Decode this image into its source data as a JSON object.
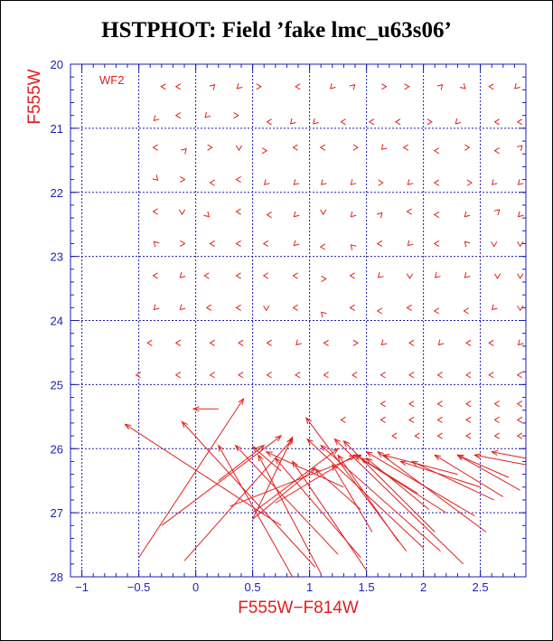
{
  "chart_data": {
    "type": "scatter",
    "title": "HSTPHOT: Field ’fake lmc_u63s06’",
    "xlabel": "F555W−F814W",
    "ylabel": "F555W",
    "panel_label": "WF2",
    "xlim": [
      -1.1,
      2.9
    ],
    "ylim": [
      28,
      20
    ],
    "x_ticks": [
      "−1",
      "−0.5",
      "0",
      "0.5",
      "1",
      "1.5",
      "2",
      "2.5"
    ],
    "x_tick_values": [
      -1,
      -0.5,
      0,
      0.5,
      1,
      1.5,
      2,
      2.5
    ],
    "y_ticks": [
      "20",
      "21",
      "22",
      "23",
      "24",
      "25",
      "26",
      "27",
      "28"
    ],
    "y_tick_values": [
      20,
      21,
      22,
      23,
      24,
      25,
      26,
      27,
      28
    ],
    "grid": true,
    "colors": {
      "axis": "#1e1eb4",
      "grid": "#1e1eb4",
      "vectors": "#e02020"
    },
    "long_vectors": [
      {
        "x0": -0.5,
        "y0": 27.7,
        "x1": 0.42,
        "y1": 25.22
      },
      {
        "x0": -0.3,
        "y0": 27.2,
        "x1": 0.75,
        "y1": 25.8
      },
      {
        "x0": -0.1,
        "y0": 27.75,
        "x1": 0.85,
        "y1": 25.85
      },
      {
        "x0": 0.5,
        "y0": 27.1,
        "x1": 0.85,
        "y1": 25.82
      },
      {
        "x0": 0.5,
        "y0": 27.0,
        "x1": 1.25,
        "y1": 26.0
      },
      {
        "x0": 0.2,
        "y0": 26.5,
        "x1": 0.6,
        "y1": 25.95
      },
      {
        "x0": 0.3,
        "y0": 26.9,
        "x1": 1.45,
        "y1": 26.1
      },
      {
        "x0": 0.7,
        "y0": 26.85,
        "x1": 1.4,
        "y1": 26.1
      },
      {
        "x0": 0.5,
        "y0": 27.1,
        "x1": 1.05,
        "y1": 26.3
      },
      {
        "x0": 1.45,
        "y0": 26.95,
        "x1": 1.05,
        "y1": 26.32
      },
      {
        "x0": 0.85,
        "y0": 28.0,
        "x1": 0.2,
        "y1": 25.95
      },
      {
        "x0": 1.1,
        "y0": 27.95,
        "x1": 0.55,
        "y1": 26.1
      },
      {
        "x0": 1.05,
        "y0": 27.85,
        "x1": -0.12,
        "y1": 25.58
      },
      {
        "x0": 1.25,
        "y0": 27.65,
        "x1": 0.35,
        "y1": 25.95
      },
      {
        "x0": 1.45,
        "y0": 27.7,
        "x1": 0.7,
        "y1": 26.15
      },
      {
        "x0": 1.5,
        "y0": 27.9,
        "x1": 0.85,
        "y1": 26.2
      },
      {
        "x0": 0.75,
        "y0": 27.2,
        "x1": -0.62,
        "y1": 25.62
      },
      {
        "x0": 1.85,
        "y0": 27.6,
        "x1": 0.97,
        "y1": 25.52
      },
      {
        "x0": 2.0,
        "y0": 27.55,
        "x1": 0.98,
        "y1": 25.85
      },
      {
        "x0": 2.15,
        "y0": 27.6,
        "x1": 1.1,
        "y1": 25.95
      },
      {
        "x0": 2.35,
        "y0": 27.8,
        "x1": 1.22,
        "y1": 25.85
      },
      {
        "x0": 2.1,
        "y0": 27.3,
        "x1": 1.3,
        "y1": 25.88
      },
      {
        "x0": 1.78,
        "y0": 27.45,
        "x1": 1.25,
        "y1": 26.1
      },
      {
        "x0": 2.2,
        "y0": 27.0,
        "x1": 1.4,
        "y1": 26.1
      },
      {
        "x0": 2.45,
        "y0": 27.05,
        "x1": 1.5,
        "y1": 26.05
      },
      {
        "x0": 2.55,
        "y0": 27.3,
        "x1": 1.6,
        "y1": 26.05
      },
      {
        "x0": 2.62,
        "y0": 26.8,
        "x1": 1.9,
        "y1": 26.2
      },
      {
        "x0": 2.7,
        "y0": 26.75,
        "x1": 2.1,
        "y1": 26.1
      },
      {
        "x0": 2.85,
        "y0": 26.65,
        "x1": 2.3,
        "y1": 26.1
      },
      {
        "x0": 2.5,
        "y0": 26.6,
        "x1": 1.8,
        "y1": 26.2
      },
      {
        "x0": 2.3,
        "y0": 26.4,
        "x1": 1.65,
        "y1": 26.1
      },
      {
        "x0": 2.05,
        "y0": 26.95,
        "x1": 1.5,
        "y1": 26.15
      },
      {
        "x0": 1.55,
        "y0": 27.3,
        "x1": 1.2,
        "y1": 26.25
      },
      {
        "x0": 2.75,
        "y0": 26.45,
        "x1": 2.3,
        "y1": 26.1
      },
      {
        "x0": 2.9,
        "y0": 26.25,
        "x1": 2.45,
        "y1": 26.1
      },
      {
        "x0": 2.9,
        "y0": 26.15,
        "x1": 2.6,
        "y1": 26.05
      },
      {
        "x0": 1.95,
        "y0": 26.7,
        "x1": 1.45,
        "y1": 26.15
      },
      {
        "x0": 1.3,
        "y0": 26.6,
        "x1": 0.62,
        "y1": 26.05
      },
      {
        "x0": 0.75,
        "y0": 26.35,
        "x1": 0.5,
        "y1": 25.97
      },
      {
        "x0": 0.2,
        "y0": 25.38,
        "x1": -0.02,
        "y1": 25.38
      }
    ],
    "short_vectors": [
      {
        "x": -0.28,
        "y": 20.35,
        "dir": "l"
      },
      {
        "x": -0.15,
        "y": 20.35,
        "dir": "l"
      },
      {
        "x": 0.15,
        "y": 20.35,
        "dir": "ur"
      },
      {
        "x": 0.38,
        "y": 20.35,
        "dir": "dl"
      },
      {
        "x": 0.55,
        "y": 20.35,
        "dir": "r"
      },
      {
        "x": 0.9,
        "y": 20.35,
        "dir": "l"
      },
      {
        "x": 1.2,
        "y": 20.35,
        "dir": "dl"
      },
      {
        "x": 1.38,
        "y": 20.35,
        "dir": "ur"
      },
      {
        "x": 1.65,
        "y": 20.35,
        "dir": "r"
      },
      {
        "x": 1.85,
        "y": 20.35,
        "dir": "r"
      },
      {
        "x": 2.15,
        "y": 20.35,
        "dir": "ur"
      },
      {
        "x": 2.35,
        "y": 20.35,
        "dir": "dr"
      },
      {
        "x": 2.6,
        "y": 20.35,
        "dir": "l"
      },
      {
        "x": 2.82,
        "y": 20.35,
        "dir": "dl"
      },
      {
        "x": -0.35,
        "y": 20.85,
        "dir": "dl"
      },
      {
        "x": -0.15,
        "y": 20.8,
        "dir": "l"
      },
      {
        "x": 0.1,
        "y": 20.8,
        "dir": "dl"
      },
      {
        "x": 0.35,
        "y": 20.8,
        "dir": "r"
      },
      {
        "x": 0.65,
        "y": 20.9,
        "dir": "l"
      },
      {
        "x": 0.85,
        "y": 20.9,
        "dir": "dl"
      },
      {
        "x": 1.05,
        "y": 20.9,
        "dir": "dl"
      },
      {
        "x": 1.3,
        "y": 20.9,
        "dir": "l"
      },
      {
        "x": 1.55,
        "y": 20.9,
        "dir": "l"
      },
      {
        "x": 1.78,
        "y": 20.9,
        "dir": "l"
      },
      {
        "x": 2.05,
        "y": 20.9,
        "dir": "r"
      },
      {
        "x": 2.3,
        "y": 20.9,
        "dir": "dl"
      },
      {
        "x": 2.65,
        "y": 20.9,
        "dir": "l"
      },
      {
        "x": 2.85,
        "y": 20.9,
        "dir": "l"
      },
      {
        "x": -0.35,
        "y": 21.3,
        "dir": "l"
      },
      {
        "x": -0.1,
        "y": 21.35,
        "dir": "ur"
      },
      {
        "x": 0.12,
        "y": 21.3,
        "dir": "r"
      },
      {
        "x": 0.38,
        "y": 21.3,
        "dir": "v"
      },
      {
        "x": 0.6,
        "y": 21.35,
        "dir": "r"
      },
      {
        "x": 0.88,
        "y": 21.3,
        "dir": "l"
      },
      {
        "x": 1.12,
        "y": 21.3,
        "dir": "l"
      },
      {
        "x": 1.4,
        "y": 21.3,
        "dir": "r"
      },
      {
        "x": 1.65,
        "y": 21.3,
        "dir": "dl"
      },
      {
        "x": 1.85,
        "y": 21.3,
        "dir": "l"
      },
      {
        "x": 2.12,
        "y": 21.35,
        "dir": "l"
      },
      {
        "x": 2.38,
        "y": 21.3,
        "dir": "r"
      },
      {
        "x": 2.65,
        "y": 21.35,
        "dir": "l"
      },
      {
        "x": 2.85,
        "y": 21.3,
        "dir": "ur"
      },
      {
        "x": -0.35,
        "y": 21.78,
        "dir": "dr"
      },
      {
        "x": -0.12,
        "y": 21.8,
        "dir": "r"
      },
      {
        "x": 0.15,
        "y": 21.85,
        "dir": "l"
      },
      {
        "x": 0.38,
        "y": 21.8,
        "dir": "l"
      },
      {
        "x": 0.62,
        "y": 21.85,
        "dir": "dl"
      },
      {
        "x": 0.88,
        "y": 21.85,
        "dir": "dl"
      },
      {
        "x": 1.12,
        "y": 21.85,
        "dir": "dl"
      },
      {
        "x": 1.38,
        "y": 21.85,
        "dir": "dl"
      },
      {
        "x": 1.62,
        "y": 21.85,
        "dir": "r"
      },
      {
        "x": 1.88,
        "y": 21.85,
        "dir": "dl"
      },
      {
        "x": 2.12,
        "y": 21.85,
        "dir": "l"
      },
      {
        "x": 2.4,
        "y": 21.85,
        "dir": "r"
      },
      {
        "x": 2.62,
        "y": 21.85,
        "dir": "dl"
      },
      {
        "x": 2.85,
        "y": 21.85,
        "dir": "dl"
      },
      {
        "x": -0.35,
        "y": 22.3,
        "dir": "l"
      },
      {
        "x": -0.12,
        "y": 22.3,
        "dir": "v"
      },
      {
        "x": 0.1,
        "y": 22.35,
        "dir": "dr"
      },
      {
        "x": 0.38,
        "y": 22.3,
        "dir": "l"
      },
      {
        "x": 0.65,
        "y": 22.35,
        "dir": "l"
      },
      {
        "x": 0.88,
        "y": 22.35,
        "dir": "dl"
      },
      {
        "x": 1.12,
        "y": 22.3,
        "dir": "v"
      },
      {
        "x": 1.38,
        "y": 22.35,
        "dir": "dl"
      },
      {
        "x": 1.62,
        "y": 22.35,
        "dir": "ur"
      },
      {
        "x": 1.88,
        "y": 22.3,
        "dir": "l"
      },
      {
        "x": 2.12,
        "y": 22.35,
        "dir": "l"
      },
      {
        "x": 2.38,
        "y": 22.35,
        "dir": "dl"
      },
      {
        "x": 2.65,
        "y": 22.3,
        "dir": "ur"
      },
      {
        "x": 2.85,
        "y": 22.35,
        "dir": "dl"
      },
      {
        "x": -0.35,
        "y": 22.8,
        "dir": "ul"
      },
      {
        "x": -0.12,
        "y": 22.8,
        "dir": "r"
      },
      {
        "x": 0.15,
        "y": 22.8,
        "dir": "l"
      },
      {
        "x": 0.38,
        "y": 22.8,
        "dir": "l"
      },
      {
        "x": 0.62,
        "y": 22.8,
        "dir": "l"
      },
      {
        "x": 0.88,
        "y": 22.8,
        "dir": "dl"
      },
      {
        "x": 1.12,
        "y": 22.85,
        "dir": "l"
      },
      {
        "x": 1.38,
        "y": 22.85,
        "dir": "ul"
      },
      {
        "x": 1.62,
        "y": 22.8,
        "dir": "l"
      },
      {
        "x": 1.88,
        "y": 22.8,
        "dir": "dl"
      },
      {
        "x": 2.12,
        "y": 22.8,
        "dir": "l"
      },
      {
        "x": 2.38,
        "y": 22.8,
        "dir": "ul"
      },
      {
        "x": 2.62,
        "y": 22.8,
        "dir": "v"
      },
      {
        "x": 2.85,
        "y": 22.8,
        "dir": "v"
      },
      {
        "x": -0.35,
        "y": 23.3,
        "dir": "l"
      },
      {
        "x": -0.12,
        "y": 23.3,
        "dir": "dl"
      },
      {
        "x": 0.1,
        "y": 23.3,
        "dir": "l"
      },
      {
        "x": 0.38,
        "y": 23.3,
        "dir": "l"
      },
      {
        "x": 0.62,
        "y": 23.3,
        "dir": "l"
      },
      {
        "x": 0.88,
        "y": 23.3,
        "dir": "l"
      },
      {
        "x": 1.12,
        "y": 23.35,
        "dir": "r"
      },
      {
        "x": 1.38,
        "y": 23.3,
        "dir": "l"
      },
      {
        "x": 1.62,
        "y": 23.3,
        "dir": "dl"
      },
      {
        "x": 1.88,
        "y": 23.3,
        "dir": "v"
      },
      {
        "x": 2.12,
        "y": 23.3,
        "dir": "dl"
      },
      {
        "x": 2.38,
        "y": 23.3,
        "dir": "dl"
      },
      {
        "x": 2.65,
        "y": 23.3,
        "dir": "v"
      },
      {
        "x": 2.85,
        "y": 23.3,
        "dir": "v"
      },
      {
        "x": -0.35,
        "y": 23.8,
        "dir": "dl"
      },
      {
        "x": -0.12,
        "y": 23.8,
        "dir": "dl"
      },
      {
        "x": 0.12,
        "y": 23.8,
        "dir": "l"
      },
      {
        "x": 0.38,
        "y": 23.8,
        "dir": "l"
      },
      {
        "x": 0.62,
        "y": 23.8,
        "dir": "v"
      },
      {
        "x": 0.88,
        "y": 23.8,
        "dir": "l"
      },
      {
        "x": 1.12,
        "y": 23.9,
        "dir": "ul"
      },
      {
        "x": 1.38,
        "y": 23.8,
        "dir": "l"
      },
      {
        "x": 1.62,
        "y": 23.85,
        "dir": "l"
      },
      {
        "x": 1.88,
        "y": 23.8,
        "dir": "l"
      },
      {
        "x": 2.12,
        "y": 23.85,
        "dir": "l"
      },
      {
        "x": 2.38,
        "y": 23.85,
        "dir": "l"
      },
      {
        "x": 2.62,
        "y": 23.8,
        "dir": "dl"
      },
      {
        "x": 2.85,
        "y": 23.8,
        "dir": "v"
      },
      {
        "x": -0.4,
        "y": 24.35,
        "dir": "l"
      },
      {
        "x": -0.15,
        "y": 24.35,
        "dir": "l"
      },
      {
        "x": 0.15,
        "y": 24.35,
        "dir": "l"
      },
      {
        "x": 0.4,
        "y": 24.35,
        "dir": "l"
      },
      {
        "x": 0.65,
        "y": 24.35,
        "dir": "l"
      },
      {
        "x": 0.9,
        "y": 24.35,
        "dir": "dl"
      },
      {
        "x": 1.15,
        "y": 24.35,
        "dir": "l"
      },
      {
        "x": 1.4,
        "y": 24.35,
        "dir": "r"
      },
      {
        "x": 1.65,
        "y": 24.35,
        "dir": "dl"
      },
      {
        "x": 1.9,
        "y": 24.35,
        "dir": "l"
      },
      {
        "x": 2.15,
        "y": 24.35,
        "dir": "dl"
      },
      {
        "x": 2.4,
        "y": 24.35,
        "dir": "l"
      },
      {
        "x": 2.6,
        "y": 24.35,
        "dir": "l"
      },
      {
        "x": 2.85,
        "y": 24.35,
        "dir": "dl"
      },
      {
        "x": -0.5,
        "y": 24.85,
        "dir": "l"
      },
      {
        "x": -0.15,
        "y": 24.85,
        "dir": "l"
      },
      {
        "x": 0.15,
        "y": 24.85,
        "dir": "l"
      },
      {
        "x": 0.4,
        "y": 24.85,
        "dir": "l"
      },
      {
        "x": 0.65,
        "y": 24.85,
        "dir": "l"
      },
      {
        "x": 0.9,
        "y": 24.85,
        "dir": "l"
      },
      {
        "x": 1.15,
        "y": 24.85,
        "dir": "l"
      },
      {
        "x": 1.4,
        "y": 24.85,
        "dir": "l"
      },
      {
        "x": 1.65,
        "y": 24.85,
        "dir": "l"
      },
      {
        "x": 1.9,
        "y": 24.85,
        "dir": "l"
      },
      {
        "x": 2.15,
        "y": 24.85,
        "dir": "l"
      },
      {
        "x": 2.4,
        "y": 24.85,
        "dir": "l"
      },
      {
        "x": 2.6,
        "y": 24.85,
        "dir": "l"
      },
      {
        "x": 2.85,
        "y": 24.85,
        "dir": "l"
      },
      {
        "x": 1.65,
        "y": 25.3,
        "dir": "l"
      },
      {
        "x": 1.9,
        "y": 25.3,
        "dir": "l"
      },
      {
        "x": 2.15,
        "y": 25.3,
        "dir": "l"
      },
      {
        "x": 2.4,
        "y": 25.3,
        "dir": "l"
      },
      {
        "x": 2.65,
        "y": 25.3,
        "dir": "l"
      },
      {
        "x": 2.85,
        "y": 25.3,
        "dir": "l"
      },
      {
        "x": 1.3,
        "y": 25.55,
        "dir": "l"
      },
      {
        "x": 1.65,
        "y": 25.55,
        "dir": "l"
      },
      {
        "x": 1.9,
        "y": 25.55,
        "dir": "l"
      },
      {
        "x": 2.15,
        "y": 25.55,
        "dir": "l"
      },
      {
        "x": 2.4,
        "y": 25.55,
        "dir": "l"
      },
      {
        "x": 2.65,
        "y": 25.55,
        "dir": "l"
      },
      {
        "x": 2.85,
        "y": 25.55,
        "dir": "l"
      },
      {
        "x": 1.75,
        "y": 25.8,
        "dir": "l"
      },
      {
        "x": 1.95,
        "y": 25.8,
        "dir": "l"
      },
      {
        "x": 2.15,
        "y": 25.8,
        "dir": "l"
      },
      {
        "x": 2.4,
        "y": 25.8,
        "dir": "l"
      },
      {
        "x": 2.65,
        "y": 25.8,
        "dir": "l"
      },
      {
        "x": 2.85,
        "y": 25.8,
        "dir": "l"
      }
    ]
  }
}
